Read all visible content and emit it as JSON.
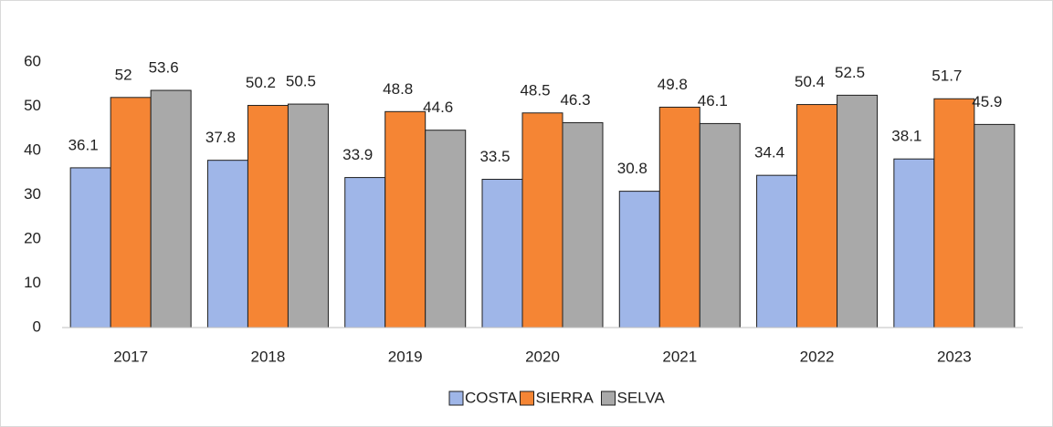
{
  "chart_data": {
    "type": "bar",
    "categories": [
      "2017",
      "2018",
      "2019",
      "2020",
      "2021",
      "2022",
      "2023"
    ],
    "series": [
      {
        "name": "COSTA",
        "color": "#9fb6e8",
        "values": [
          36.1,
          37.8,
          33.9,
          33.5,
          30.8,
          34.4,
          38.1
        ]
      },
      {
        "name": "SIERRA",
        "color": "#f58534",
        "values": [
          52,
          50.2,
          48.8,
          48.5,
          49.8,
          50.4,
          51.7
        ]
      },
      {
        "name": "SELVA",
        "color": "#a9a9a9",
        "values": [
          53.6,
          50.5,
          44.6,
          46.3,
          46.1,
          52.5,
          45.9
        ]
      }
    ],
    "ylim": [
      0,
      60
    ],
    "yticks": [
      0,
      10,
      20,
      30,
      40,
      50,
      60
    ],
    "grid": false,
    "legend": "bottom"
  }
}
